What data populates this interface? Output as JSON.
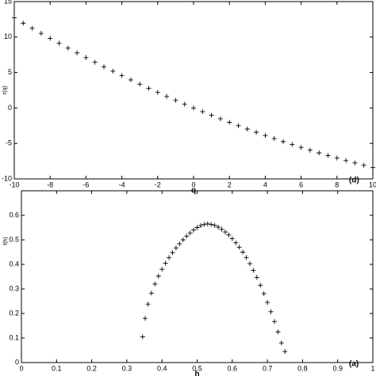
{
  "chart_data": [
    {
      "type": "scatter",
      "marker": "+",
      "color": "#000000",
      "xlabel": "q",
      "ylabel": "τ(q)",
      "annotation": "(d)",
      "x": [
        -10,
        -9.5,
        -9,
        -8.5,
        -8,
        -7.5,
        -7,
        -6.5,
        -6,
        -5.5,
        -5,
        -4.5,
        -4,
        -3.5,
        -3,
        -2.5,
        -2,
        -1.5,
        -1,
        -0.5,
        0,
        0.5,
        1,
        1.5,
        2,
        2.5,
        3,
        3.5,
        4,
        4.5,
        5,
        5.5,
        6,
        6.5,
        7,
        7.5,
        8,
        8.5,
        9,
        9.5,
        10
      ],
      "values": [
        12.7,
        11.96,
        11.24,
        10.52,
        9.82,
        9.12,
        8.44,
        7.77,
        7.1,
        6.45,
        5.81,
        5.18,
        4.56,
        3.96,
        3.36,
        2.77,
        2.2,
        1.63,
        1.08,
        0.53,
        0,
        -0.52,
        -1.03,
        -1.53,
        -2.02,
        -2.5,
        -2.97,
        -3.43,
        -3.88,
        -4.31,
        -4.74,
        -5.15,
        -5.56,
        -5.95,
        -6.33,
        -6.7,
        -7.06,
        -7.41,
        -7.75,
        -8.08,
        -8.4
      ],
      "xlim": [
        -10,
        10
      ],
      "ylim": [
        -10,
        15
      ],
      "xticks": [
        -10,
        -8,
        -6,
        -4,
        -2,
        0,
        2,
        4,
        6,
        8,
        10
      ],
      "yticks": [
        -10,
        -5,
        0,
        5,
        10,
        15
      ]
    },
    {
      "type": "scatter",
      "marker": "+",
      "color": "#000000",
      "xlabel": "h",
      "ylabel": "f(h)",
      "annotation": "(a)",
      "x": [
        0.345,
        0.352,
        0.36,
        0.37,
        0.38,
        0.39,
        0.4,
        0.41,
        0.42,
        0.43,
        0.44,
        0.45,
        0.46,
        0.47,
        0.48,
        0.49,
        0.5,
        0.51,
        0.52,
        0.53,
        0.54,
        0.55,
        0.56,
        0.57,
        0.58,
        0.59,
        0.6,
        0.61,
        0.62,
        0.63,
        0.64,
        0.65,
        0.66,
        0.67,
        0.68,
        0.69,
        0.7,
        0.71,
        0.72,
        0.73,
        0.74,
        0.75
      ],
      "values": [
        0.105,
        0.18,
        0.238,
        0.283,
        0.32,
        0.352,
        0.38,
        0.405,
        0.428,
        0.448,
        0.467,
        0.484,
        0.5,
        0.515,
        0.528,
        0.54,
        0.55,
        0.558,
        0.563,
        0.565,
        0.563,
        0.559,
        0.552,
        0.543,
        0.532,
        0.52,
        0.505,
        0.488,
        0.47,
        0.45,
        0.428,
        0.403,
        0.376,
        0.347,
        0.315,
        0.281,
        0.245,
        0.207,
        0.167,
        0.125,
        0.08,
        0.045
      ],
      "xlim": [
        0,
        1
      ],
      "ylim": [
        0,
        0.7
      ],
      "xticks": [
        0,
        0.1,
        0.2,
        0.3,
        0.4,
        0.5,
        0.6,
        0.7,
        0.8,
        0.9,
        1
      ],
      "yticks": [
        0,
        0.1,
        0.2,
        0.3,
        0.4,
        0.5,
        0.6
      ]
    }
  ]
}
